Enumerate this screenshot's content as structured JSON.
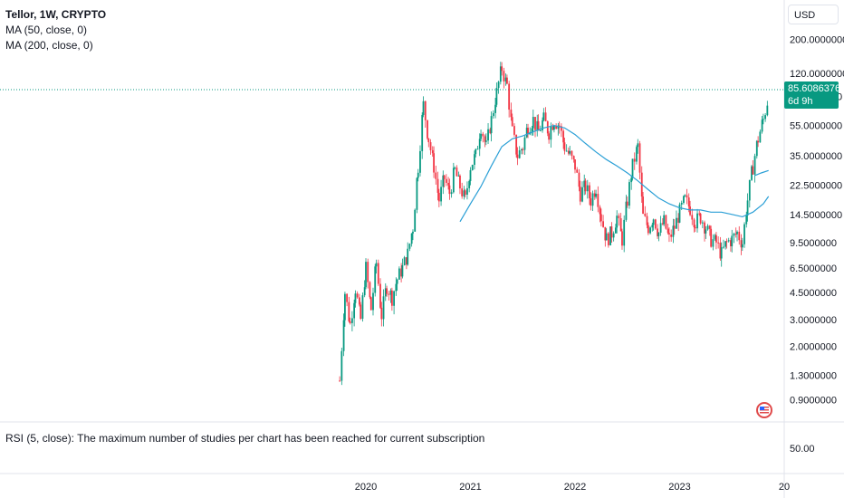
{
  "legend": {
    "title": "Tellor, 1W, CRYPTO",
    "ma50": "MA (50, close, 0)",
    "ma200": "MA (200, close, 0)"
  },
  "rsi_message": "RSI (5, close): The maximum number of studies per chart has been reached for current subscription",
  "currency": "USD",
  "price_tag": {
    "price": "85.6086376",
    "countdown": "6d 9h"
  },
  "rsi_axis_label": "50.00",
  "colors": {
    "up": "#089981",
    "down": "#f23645",
    "ma": "#2a9fd6",
    "tag": "#089981"
  },
  "chart_data": {
    "type": "candlestick",
    "scale": "log",
    "ylim": [
      0.75,
      240
    ],
    "yticks": [
      "200.0000000",
      "120.0000000",
      "85.0000000",
      "55.0000000",
      "35.0000000",
      "22.5000000",
      "14.5000000",
      "9.5000000",
      "6.5000000",
      "4.5000000",
      "3.0000000",
      "2.0000000",
      "1.3000000",
      "0.9000000"
    ],
    "ytick_values": [
      200,
      120,
      85,
      55,
      35,
      22.5,
      14.5,
      9.5,
      6.5,
      4.5,
      3.0,
      2.0,
      1.3,
      0.9
    ],
    "xticks": [
      {
        "label": "2020",
        "year": 2020.0
      },
      {
        "label": "2021",
        "year": 2021.0
      },
      {
        "label": "2022",
        "year": 2022.0
      },
      {
        "label": "2023",
        "year": 2023.0
      },
      {
        "label": "20",
        "year": 2024.0
      }
    ],
    "series": [
      {
        "name": "price",
        "closes_anchor": [
          [
            2019.75,
            1.2
          ],
          [
            2019.8,
            4.5
          ],
          [
            2019.85,
            2.8
          ],
          [
            2019.9,
            4.8
          ],
          [
            2019.95,
            3.0
          ],
          [
            2020.0,
            6.5
          ],
          [
            2020.05,
            3.5
          ],
          [
            2020.1,
            7.0
          ],
          [
            2020.15,
            3.2
          ],
          [
            2020.2,
            5.0
          ],
          [
            2020.25,
            4.2
          ],
          [
            2020.3,
            5.5
          ],
          [
            2020.35,
            6.5
          ],
          [
            2020.4,
            8.0
          ],
          [
            2020.45,
            12.0
          ],
          [
            2020.5,
            30.0
          ],
          [
            2020.55,
            75.0
          ],
          [
            2020.6,
            45.0
          ],
          [
            2020.65,
            30.0
          ],
          [
            2020.7,
            18.0
          ],
          [
            2020.75,
            25.0
          ],
          [
            2020.8,
            20.0
          ],
          [
            2020.85,
            28.0
          ],
          [
            2020.9,
            22.0
          ],
          [
            2020.95,
            18.0
          ],
          [
            2021.0,
            30.0
          ],
          [
            2021.05,
            35.0
          ],
          [
            2021.1,
            55.0
          ],
          [
            2021.15,
            40.0
          ],
          [
            2021.2,
            60.0
          ],
          [
            2021.25,
            90.0
          ],
          [
            2021.3,
            130.0
          ],
          [
            2021.35,
            100.0
          ],
          [
            2021.4,
            50.0
          ],
          [
            2021.45,
            35.0
          ],
          [
            2021.5,
            40.0
          ],
          [
            2021.55,
            55.0
          ],
          [
            2021.6,
            60.0
          ],
          [
            2021.65,
            50.0
          ],
          [
            2021.7,
            60.0
          ],
          [
            2021.75,
            50.0
          ],
          [
            2021.8,
            60.0
          ],
          [
            2021.85,
            55.0
          ],
          [
            2021.9,
            40.0
          ],
          [
            2021.95,
            35.0
          ],
          [
            2022.0,
            30.0
          ],
          [
            2022.05,
            20.0
          ],
          [
            2022.1,
            22.0
          ],
          [
            2022.15,
            18.0
          ],
          [
            2022.2,
            22.0
          ],
          [
            2022.25,
            14.0
          ],
          [
            2022.3,
            10.0
          ],
          [
            2022.35,
            11.0
          ],
          [
            2022.4,
            14.0
          ],
          [
            2022.45,
            10.0
          ],
          [
            2022.5,
            18.0
          ],
          [
            2022.55,
            30.0
          ],
          [
            2022.6,
            40.0
          ],
          [
            2022.65,
            14.0
          ],
          [
            2022.7,
            12.0
          ],
          [
            2022.75,
            14.0
          ],
          [
            2022.8,
            11.0
          ],
          [
            2022.85,
            13.0
          ],
          [
            2022.9,
            10.0
          ],
          [
            2022.95,
            12.0
          ],
          [
            2023.0,
            15.0
          ],
          [
            2023.05,
            18.0
          ],
          [
            2023.1,
            16.0
          ],
          [
            2023.15,
            13.0
          ],
          [
            2023.2,
            14.0
          ],
          [
            2023.25,
            12.0
          ],
          [
            2023.3,
            10.0
          ],
          [
            2023.35,
            9.5
          ],
          [
            2023.4,
            8.0
          ],
          [
            2023.45,
            9.5
          ],
          [
            2023.5,
            10.0
          ],
          [
            2023.55,
            11.0
          ],
          [
            2023.6,
            9.5
          ],
          [
            2023.65,
            18.0
          ],
          [
            2023.7,
            30.0
          ],
          [
            2023.75,
            45.0
          ],
          [
            2023.8,
            60.0
          ],
          [
            2023.85,
            85.6
          ]
        ]
      },
      {
        "name": "MA (50, close, 0)",
        "points": [
          [
            2020.9,
            13.0
          ],
          [
            2021.0,
            17.0
          ],
          [
            2021.1,
            22.0
          ],
          [
            2021.2,
            30.0
          ],
          [
            2021.3,
            40.0
          ],
          [
            2021.4,
            45.0
          ],
          [
            2021.5,
            47.0
          ],
          [
            2021.6,
            50.0
          ],
          [
            2021.7,
            53.0
          ],
          [
            2021.8,
            55.0
          ],
          [
            2021.9,
            53.0
          ],
          [
            2022.0,
            48.0
          ],
          [
            2022.1,
            42.0
          ],
          [
            2022.2,
            37.0
          ],
          [
            2022.3,
            33.0
          ],
          [
            2022.4,
            30.0
          ],
          [
            2022.5,
            27.0
          ],
          [
            2022.6,
            24.0
          ],
          [
            2022.7,
            21.0
          ],
          [
            2022.8,
            18.5
          ],
          [
            2022.9,
            17.0
          ],
          [
            2023.0,
            16.0
          ],
          [
            2023.1,
            15.5
          ],
          [
            2023.2,
            15.5
          ],
          [
            2023.3,
            15.0
          ],
          [
            2023.4,
            15.0
          ],
          [
            2023.5,
            14.5
          ],
          [
            2023.6,
            14.0
          ],
          [
            2023.7,
            15.0
          ],
          [
            2023.8,
            17.0
          ],
          [
            2023.85,
            19.0
          ]
        ]
      },
      {
        "name": "MA (200, close, 0)",
        "points": [
          [
            2023.72,
            26.0
          ],
          [
            2023.78,
            27.0
          ],
          [
            2023.85,
            28.0
          ]
        ]
      }
    ]
  }
}
